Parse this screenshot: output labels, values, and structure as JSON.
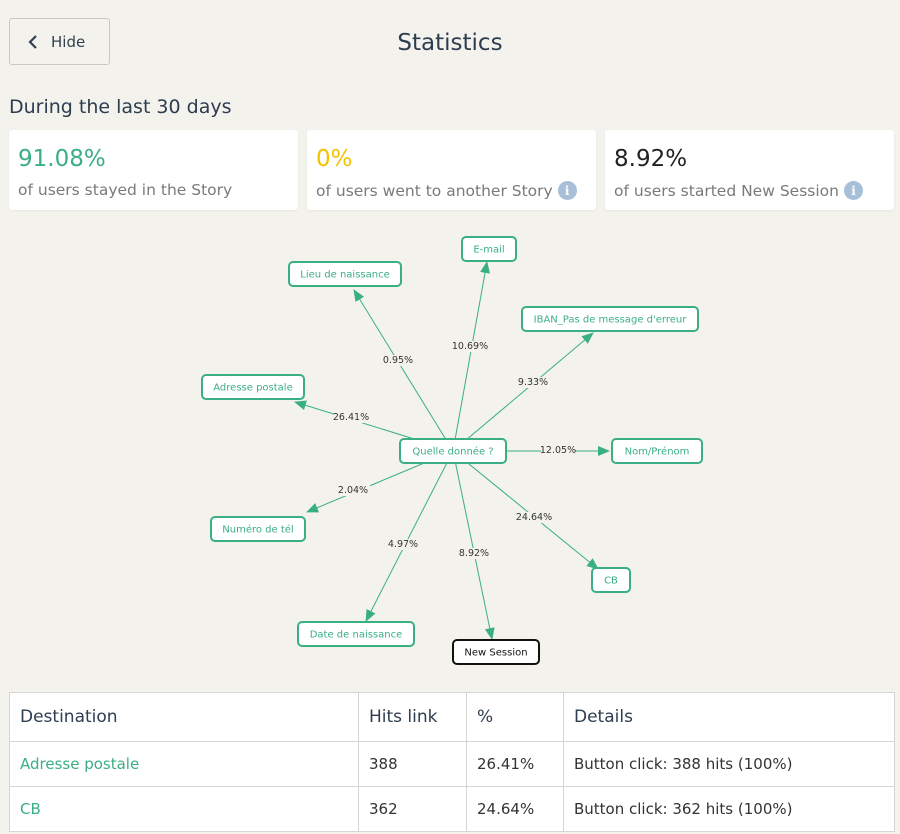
{
  "header": {
    "hide_label": "Hide",
    "title": "Statistics"
  },
  "period": "During the last 30 days",
  "cards": [
    {
      "value": "91.08%",
      "label": "of users stayed in the Story",
      "color": "#3aaf83",
      "info": false
    },
    {
      "value": "0%",
      "label": "of users went to another Story",
      "color": "#f2c200",
      "info": true
    },
    {
      "value": "8.92%",
      "label": "of users started New Session",
      "color": "#222222",
      "info": true
    }
  ],
  "graph": {
    "center": "Quelle donnée ?",
    "edges": [
      {
        "target": "Lieu de naissance",
        "pct": "0.95%"
      },
      {
        "target": "E-mail",
        "pct": "10.69%"
      },
      {
        "target": "IBAN_Pas de message d'erreur",
        "pct": "9.33%"
      },
      {
        "target": "Adresse postale",
        "pct": "26.41%"
      },
      {
        "target": "Nom/Prénom",
        "pct": "12.05%"
      },
      {
        "target": "Numéro de tél",
        "pct": "2.04%"
      },
      {
        "target": "CB",
        "pct": "24.64%"
      },
      {
        "target": "Date de naissance",
        "pct": "4.97%"
      },
      {
        "target": "New Session",
        "pct": "8.92%"
      }
    ]
  },
  "table": {
    "headers": [
      "Destination",
      "Hits link",
      "%",
      "Details"
    ],
    "rows": [
      [
        "Adresse postale",
        "388",
        "26.41%",
        "Button click: 388 hits (100%)"
      ],
      [
        "CB",
        "362",
        "24.64%",
        "Button click: 362 hits (100%)"
      ]
    ]
  }
}
